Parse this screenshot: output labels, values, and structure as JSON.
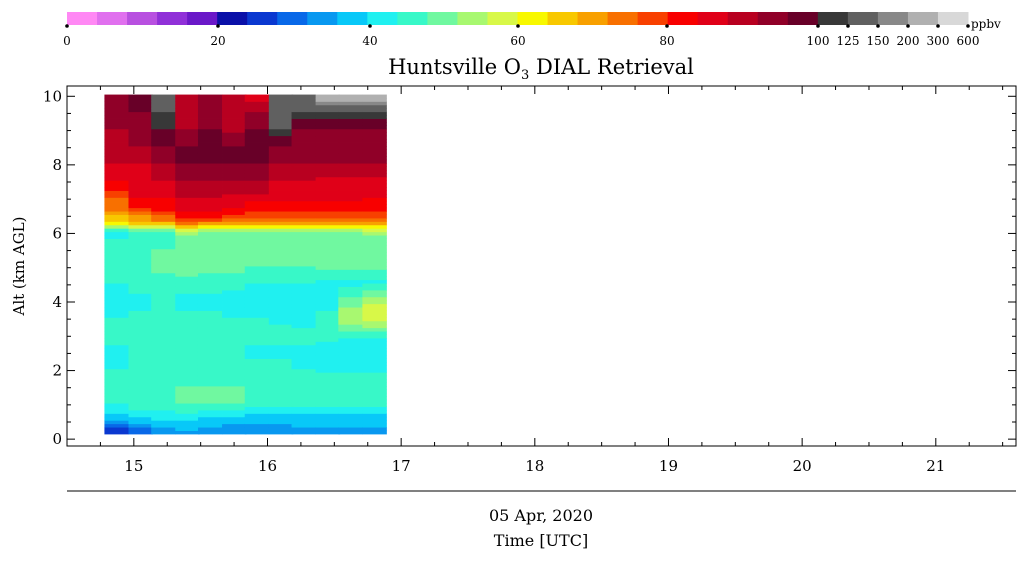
{
  "chart_data": {
    "type": "heatmap",
    "title": "Huntsville O3 DIAL Retrieval",
    "title_parts": {
      "main": "Huntsville O",
      "subscript": "3",
      "rest": " DIAL Retrieval"
    },
    "xlabel": "Time [UTC]",
    "date_label": "05 Apr, 2020",
    "ylabel": "Alt (km AGL)",
    "xlim": [
      14.5,
      21.6
    ],
    "ylim": [
      -0.2,
      10.3
    ],
    "x_ticks": [
      "15",
      "16",
      "17",
      "18",
      "19",
      "20",
      "21"
    ],
    "y_ticks": [
      "0",
      "2",
      "4",
      "6",
      "8",
      "10"
    ],
    "colorbar": {
      "unit": "ppbv",
      "tick_labels": [
        "0",
        "20",
        "40",
        "60",
        "80",
        "100",
        "125",
        "150",
        "200",
        "300",
        "600"
      ],
      "colors": [
        "#ff88f4",
        "#e070ee",
        "#b850e0",
        "#9030d8",
        "#6a18c8",
        "#0a10a8",
        "#0a38d0",
        "#0868e8",
        "#0898f0",
        "#08c8f8",
        "#20f0f0",
        "#38f8c8",
        "#70f8a0",
        "#a8f870",
        "#d8f848",
        "#f8f800",
        "#f8c800",
        "#f8a000",
        "#f87000",
        "#f84000",
        "#f80000",
        "#e00018",
        "#b80020",
        "#900028",
        "#680028",
        "#383838",
        "#606060",
        "#888888",
        "#b0b0b0",
        "#d8d8d8"
      ]
    },
    "time_columns": [
      14.87,
      15.05,
      15.22,
      15.4,
      15.57,
      15.75,
      15.92,
      16.1,
      16.27,
      16.45,
      16.62,
      16.8
    ],
    "altitude_profiles_ppbv": [
      {
        "alt_km": [
          0.2,
          0.5,
          1.0,
          1.5,
          2.0,
          2.5,
          3.0,
          3.5,
          4.0,
          4.5,
          5.0,
          5.5,
          6.0,
          6.3,
          6.6,
          7.0,
          7.5,
          8.0,
          8.5,
          9.0,
          9.5,
          10.0
        ],
        "ppbv": [
          30,
          45,
          56,
          57,
          55,
          54,
          56,
          55,
          52,
          55,
          60,
          58,
          52,
          80,
          90,
          95,
          110,
          125,
          140,
          150,
          160,
          170
        ]
      },
      {
        "alt_km": [
          0.2,
          0.5,
          1.0,
          1.5,
          2.0,
          2.5,
          3.0,
          3.5,
          4.0,
          4.5,
          5.0,
          5.5,
          6.0,
          6.3,
          6.6,
          7.0,
          7.5,
          8.0,
          8.5,
          9.0,
          9.5,
          10.0
        ],
        "ppbv": [
          38,
          48,
          58,
          58,
          56,
          55,
          57,
          56,
          54,
          56,
          60,
          58,
          56,
          85,
          95,
          110,
          120,
          125,
          150,
          170,
          200,
          220
        ]
      },
      {
        "alt_km": [
          0.2,
          0.5,
          1.0,
          1.5,
          2.0,
          2.5,
          3.0,
          3.5,
          4.0,
          4.5,
          5.0,
          5.5,
          6.0,
          6.3,
          6.6,
          7.0,
          7.5,
          8.0,
          8.5,
          9.0,
          9.5,
          10.0
        ],
        "ppbv": [
          42,
          50,
          58,
          58,
          56,
          55,
          58,
          56,
          55,
          57,
          62,
          60,
          58,
          90,
          100,
          110,
          125,
          150,
          200,
          250,
          300,
          320
        ]
      },
      {
        "alt_km": [
          0.2,
          0.5,
          1.0,
          1.5,
          2.0,
          2.5,
          3.0,
          3.5,
          4.0,
          4.5,
          5.0,
          5.5,
          6.0,
          6.3,
          6.6,
          7.0,
          7.5,
          8.0,
          8.5,
          9.0,
          9.5,
          10.0
        ],
        "ppbv": [
          44,
          50,
          60,
          60,
          56,
          55,
          58,
          56,
          54,
          57,
          64,
          62,
          66,
          95,
          110,
          125,
          150,
          200,
          200,
          150,
          140,
          130
        ]
      },
      {
        "alt_km": [
          0.2,
          0.5,
          1.0,
          1.5,
          2.0,
          2.5,
          3.0,
          3.5,
          4.0,
          4.5,
          5.0,
          5.5,
          6.0,
          6.3,
          6.6,
          7.0,
          7.5,
          8.0,
          8.5,
          9.0,
          9.5,
          10.0
        ],
        "ppbv": [
          42,
          48,
          60,
          60,
          56,
          56,
          58,
          56,
          54,
          57,
          62,
          64,
          62,
          95,
          110,
          125,
          150,
          200,
          200,
          200,
          150,
          200
        ]
      },
      {
        "alt_km": [
          0.2,
          0.5,
          1.0,
          1.5,
          2.0,
          2.5,
          3.0,
          3.5,
          4.0,
          4.5,
          5.0,
          5.5,
          6.0,
          6.3,
          6.6,
          7.0,
          7.5,
          8.0,
          8.5,
          9.0,
          9.5,
          10.0
        ],
        "ppbv": [
          40,
          48,
          60,
          60,
          56,
          55,
          57,
          55,
          53,
          56,
          62,
          64,
          60,
          92,
          105,
          120,
          150,
          200,
          200,
          130,
          140,
          125
        ]
      },
      {
        "alt_km": [
          0.2,
          0.5,
          1.0,
          1.5,
          2.0,
          2.5,
          3.0,
          3.5,
          4.0,
          4.5,
          5.0,
          5.5,
          6.0,
          6.3,
          6.6,
          7.0,
          7.5,
          8.0,
          8.5,
          9.0,
          9.5,
          10.0
        ],
        "ppbv": [
          40,
          46,
          58,
          60,
          56,
          54,
          57,
          55,
          53,
          55,
          60,
          62,
          60,
          92,
          100,
          115,
          150,
          200,
          200,
          200,
          150,
          110
        ]
      },
      {
        "alt_km": [
          0.2,
          0.5,
          1.0,
          1.5,
          2.0,
          2.5,
          3.0,
          3.5,
          4.0,
          4.5,
          5.0,
          5.5,
          6.0,
          6.3,
          6.6,
          7.0,
          7.5,
          8.0,
          8.5,
          9.0,
          9.5,
          10.0
        ],
        "ppbv": [
          42,
          46,
          58,
          60,
          56,
          54,
          57,
          54,
          52,
          55,
          60,
          62,
          60,
          92,
          100,
          115,
          125,
          150,
          200,
          300,
          300,
          300
        ]
      },
      {
        "alt_km": [
          0.2,
          0.5,
          1.0,
          1.5,
          2.0,
          2.5,
          3.0,
          3.5,
          4.0,
          4.5,
          5.0,
          5.5,
          6.0,
          6.3,
          6.6,
          7.0,
          7.5,
          8.0,
          8.5,
          9.0,
          9.5,
          10.0
        ],
        "ppbv": [
          44,
          46,
          58,
          58,
          55,
          54,
          56,
          54,
          52,
          55,
          60,
          62,
          60,
          92,
          100,
          115,
          125,
          150,
          150,
          200,
          300,
          300
        ]
      },
      {
        "alt_km": [
          0.2,
          0.5,
          1.0,
          1.5,
          2.0,
          2.5,
          3.0,
          3.5,
          4.0,
          4.5,
          5.0,
          5.5,
          6.0,
          6.3,
          6.6,
          7.0,
          7.5,
          8.0,
          8.5,
          9.0,
          9.5,
          10.0
        ],
        "ppbv": [
          44,
          46,
          56,
          58,
          54,
          53,
          56,
          58,
          50,
          54,
          62,
          62,
          62,
          92,
          100,
          115,
          120,
          150,
          150,
          200,
          300,
          600
        ]
      },
      {
        "alt_km": [
          0.2,
          0.5,
          1.0,
          1.5,
          2.0,
          2.5,
          3.0,
          3.5,
          4.0,
          4.5,
          5.0,
          5.5,
          6.0,
          6.3,
          6.6,
          7.0,
          7.5,
          8.0,
          8.5,
          9.0,
          9.5,
          10.0
        ],
        "ppbv": [
          44,
          46,
          56,
          58,
          54,
          52,
          56,
          70,
          62,
          54,
          62,
          62,
          64,
          92,
          100,
          115,
          120,
          150,
          150,
          200,
          300,
          600
        ]
      },
      {
        "alt_km": [
          0.2,
          0.5,
          1.0,
          1.5,
          2.0,
          2.5,
          3.0,
          3.5,
          4.0,
          4.5,
          5.0,
          5.5,
          6.0,
          6.3,
          6.6,
          7.0,
          7.5,
          8.0,
          8.5,
          9.0,
          9.5,
          10.0
        ],
        "ppbv": [
          44,
          46,
          56,
          58,
          54,
          52,
          56,
          75,
          68,
          54,
          62,
          62,
          66,
          92,
          100,
          110,
          120,
          150,
          150,
          200,
          300,
          600
        ]
      }
    ]
  }
}
